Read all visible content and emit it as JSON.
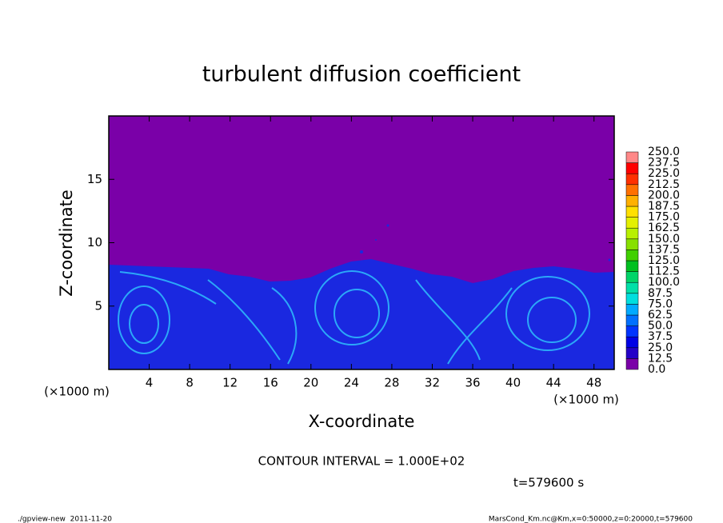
{
  "chart_data": {
    "type": "contour",
    "title": "turbulent diffusion coefficient",
    "xlabel": "X-coordinate",
    "ylabel": "Z-coordinate",
    "x_unit": "(×1000 m)",
    "y_unit": "(×1000 m)",
    "xlim": [
      0,
      50
    ],
    "ylim": [
      0,
      20
    ],
    "xticks": [
      4,
      8,
      12,
      16,
      20,
      24,
      28,
      32,
      36,
      40,
      44,
      48
    ],
    "yticks": [
      5,
      10,
      15
    ],
    "levels": [
      {
        "value": 0,
        "label": "0.0"
      },
      {
        "value": 12.5,
        "label": "12.5"
      },
      {
        "value": 25,
        "label": "25.0"
      },
      {
        "value": 37.5,
        "label": "37.5"
      },
      {
        "value": 50,
        "label": "50.0"
      },
      {
        "value": 62.5,
        "label": "62.5"
      },
      {
        "value": 75,
        "label": "75.0"
      },
      {
        "value": 87.5,
        "label": "87.5"
      },
      {
        "value": 100,
        "label": "100.0"
      },
      {
        "value": 112.5,
        "label": "112.5"
      },
      {
        "value": 125,
        "label": "125.0"
      },
      {
        "value": 137.5,
        "label": "137.5"
      },
      {
        "value": 150,
        "label": "150.0"
      },
      {
        "value": 162.5,
        "label": "162.5"
      },
      {
        "value": 175,
        "label": "175.0"
      },
      {
        "value": 187.5,
        "label": "187.5"
      },
      {
        "value": 200,
        "label": "200.0"
      },
      {
        "value": 212.5,
        "label": "212.5"
      },
      {
        "value": 225,
        "label": "225.0"
      },
      {
        "value": 237.5,
        "label": "237.5"
      },
      {
        "value": 250,
        "label": "250.0"
      }
    ],
    "colors": [
      "#7a00a8",
      "#2400c8",
      "#0000e6",
      "#0034ff",
      "#0070ff",
      "#00aaff",
      "#00dede",
      "#00e0a8",
      "#00d468",
      "#00c020",
      "#40d000",
      "#88e000",
      "#b8f000",
      "#e4f000",
      "#ffe000",
      "#ffb000",
      "#ff7000",
      "#ff3000",
      "#ff0000",
      "#ff8888"
    ],
    "annotations": [
      "CONTOUR INTERVAL = 1.000E+02",
      "t=579600 s",
      "./gpview-new  2011-11-20",
      "MarsCond_Km.nc@Km,x=0:50000,z=0:20000,t=579600"
    ]
  }
}
